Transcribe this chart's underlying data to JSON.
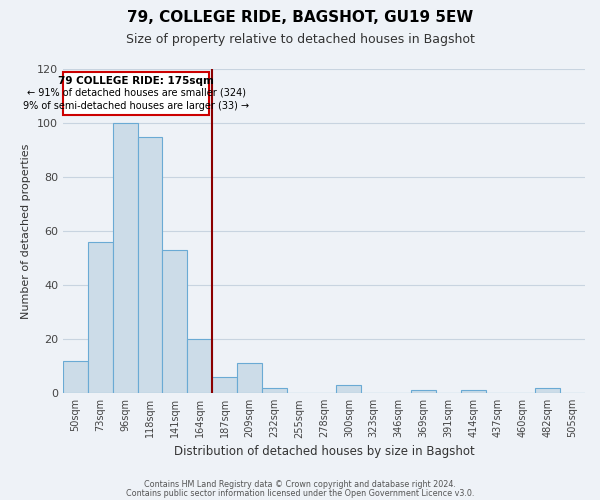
{
  "title": "79, COLLEGE RIDE, BAGSHOT, GU19 5EW",
  "subtitle": "Size of property relative to detached houses in Bagshot",
  "xlabel": "Distribution of detached houses by size in Bagshot",
  "ylabel": "Number of detached properties",
  "bar_labels": [
    "50sqm",
    "73sqm",
    "96sqm",
    "118sqm",
    "141sqm",
    "164sqm",
    "187sqm",
    "209sqm",
    "232sqm",
    "255sqm",
    "278sqm",
    "300sqm",
    "323sqm",
    "346sqm",
    "369sqm",
    "391sqm",
    "414sqm",
    "437sqm",
    "460sqm",
    "482sqm",
    "505sqm"
  ],
  "bar_values": [
    12,
    56,
    100,
    95,
    53,
    20,
    6,
    11,
    2,
    0,
    0,
    3,
    0,
    0,
    1,
    0,
    1,
    0,
    0,
    2,
    0
  ],
  "bar_color": "#ccdce8",
  "bar_edge_color": "#6aaad4",
  "ylim": [
    0,
    120
  ],
  "yticks": [
    0,
    20,
    40,
    60,
    80,
    100,
    120
  ],
  "vline_color": "#8b0000",
  "annotation_title": "79 COLLEGE RIDE: 175sqm",
  "annotation_line1": "← 91% of detached houses are smaller (324)",
  "annotation_line2": "9% of semi-detached houses are larger (33) →",
  "annotation_box_color": "#cc0000",
  "footer1": "Contains HM Land Registry data © Crown copyright and database right 2024.",
  "footer2": "Contains public sector information licensed under the Open Government Licence v3.0.",
  "background_color": "#eef2f7",
  "grid_color": "#c8d4e0"
}
